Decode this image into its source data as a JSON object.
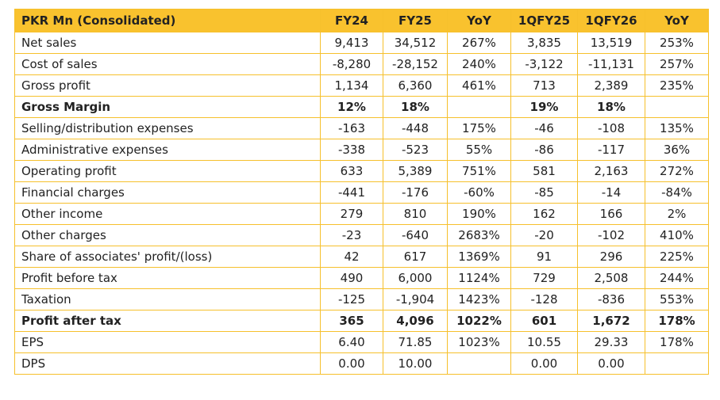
{
  "table": {
    "header": [
      "PKR Mn (Consolidated)",
      "FY24",
      "FY25",
      "YoY",
      "1QFY25",
      "1QFY26",
      "YoY"
    ],
    "rows": [
      {
        "cells": [
          "Net sales",
          "9,413",
          "34,512",
          "267%",
          "3,835",
          "13,519",
          "253%"
        ]
      },
      {
        "cells": [
          "Cost of sales",
          "-8,280",
          "-28,152",
          "240%",
          "-3,122",
          "-11,131",
          "257%"
        ]
      },
      {
        "cells": [
          "Gross profit",
          "1,134",
          "6,360",
          "461%",
          "713",
          "2,389",
          "235%"
        ]
      },
      {
        "cells": [
          "Gross Margin",
          "12%",
          "18%",
          null,
          "19%",
          "18%",
          null
        ],
        "bold": true
      },
      {
        "cells": [
          "Selling/distribution expenses",
          "-163",
          "-448",
          "175%",
          "-46",
          "-108",
          "135%"
        ]
      },
      {
        "cells": [
          "Administrative expenses",
          "-338",
          "-523",
          "55%",
          "-86",
          "-117",
          "36%"
        ]
      },
      {
        "cells": [
          "Operating profit",
          "633",
          "5,389",
          "751%",
          "581",
          "2,163",
          "272%"
        ]
      },
      {
        "cells": [
          "Financial charges",
          "-441",
          "-176",
          "-60%",
          "-85",
          "-14",
          "-84%"
        ]
      },
      {
        "cells": [
          "Other income",
          "279",
          "810",
          "190%",
          "162",
          "166",
          "2%"
        ]
      },
      {
        "cells": [
          "Other charges",
          "-23",
          "-640",
          "2683%",
          "-20",
          "-102",
          "410%"
        ]
      },
      {
        "cells": [
          "Share of associates' profit/(loss)",
          "42",
          "617",
          "1369%",
          "91",
          "296",
          "225%"
        ]
      },
      {
        "cells": [
          "Profit before tax",
          "490",
          "6,000",
          "1124%",
          "729",
          "2,508",
          "244%"
        ]
      },
      {
        "cells": [
          "Taxation",
          "-125",
          "-1,904",
          "1423%",
          "-128",
          "-836",
          "553%"
        ]
      },
      {
        "cells": [
          "Profit after tax",
          "365",
          "4,096",
          "1022%",
          "601",
          "1,672",
          "178%"
        ],
        "bold": true
      },
      {
        "cells": [
          "EPS",
          "6.40",
          "71.85",
          "1023%",
          "10.55",
          "29.33",
          "178%"
        ]
      },
      {
        "cells": [
          "DPS",
          "0.00",
          "10.00",
          null,
          "0.00",
          "0.00",
          null
        ]
      }
    ]
  }
}
